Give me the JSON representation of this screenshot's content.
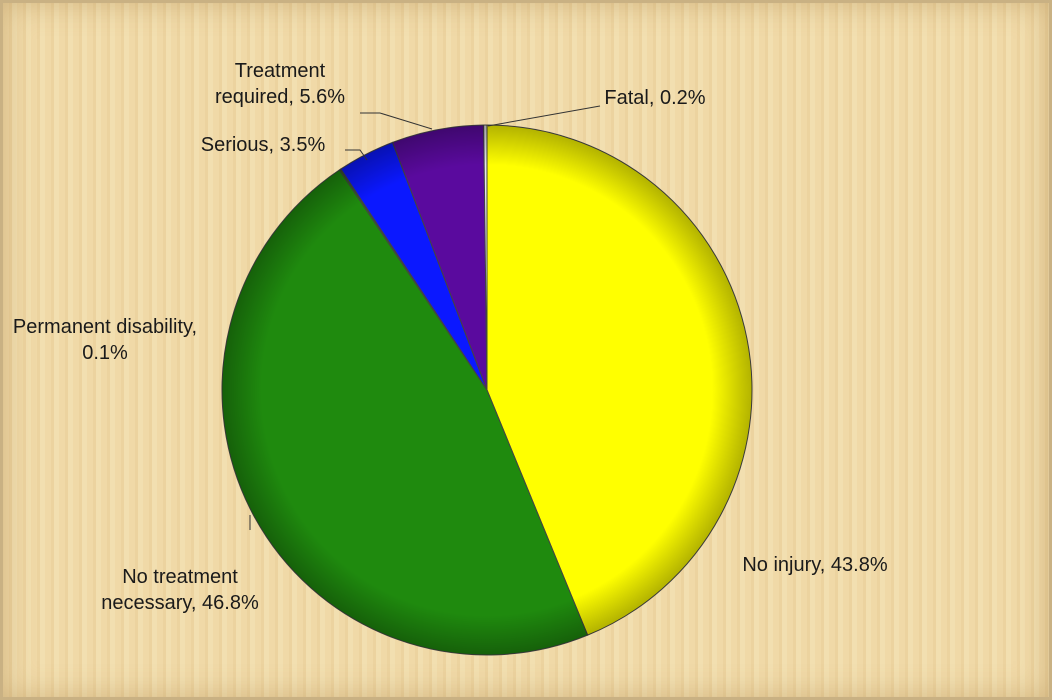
{
  "chart_data": {
    "type": "pie",
    "values": [
      43.8,
      46.8,
      0.1,
      3.5,
      5.6,
      0.2
    ],
    "value_labels": [
      "No injury, 43.8%",
      "No treatment necessary, 46.8%",
      "Permanent disability, 0.1%",
      "Serious, 3.5%",
      "Treatment required, 5.6%",
      "Fatal, 0.2%"
    ],
    "colors": [
      "#ffff00",
      "#1f8a0e",
      "#2d6a1a",
      "#0b18ff",
      "#5a0a9e",
      "#e8e8e8"
    ]
  }
}
